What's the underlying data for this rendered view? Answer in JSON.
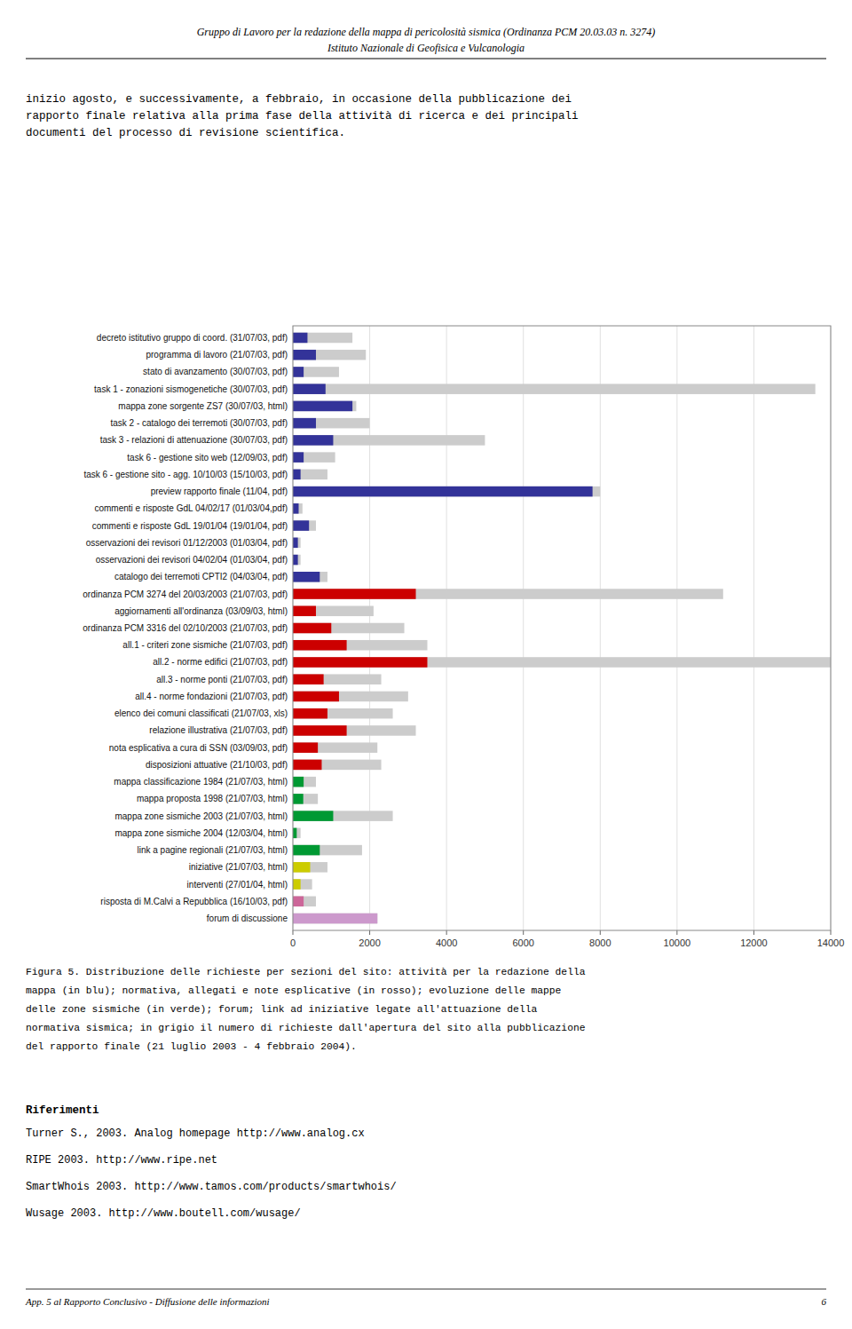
{
  "chart_data": {
    "type": "bar",
    "orientation": "horizontal",
    "stacked": false,
    "grid": true,
    "categories": [
      "decreto istitutivo gruppo di coord. (31/07/03, pdf)",
      "programma di lavoro (21/07/03, pdf)",
      "stato di avanzamento (30/07/03, pdf)",
      "task 1 - zonazioni sismogenetiche (30/07/03, pdf)",
      "mappa  zone sorgente ZS7 (30/07/03, html)",
      "task 2 - catalogo dei terremoti (30/07/03, pdf)",
      "task 3 - relazioni di attenuazione (30/07/03, pdf)",
      "task 6 - gestione sito web (12/09/03, pdf)",
      "task 6 - gestione sito - agg. 10/10/03 (15/10/03, pdf)",
      "preview rapporto finale (11/04, pdf)",
      "commenti e risposte GdL 04/02/17 (01/03/04,pdf)",
      "commenti e risposte GdL 19/01/04 (19/01/04, pdf)",
      "osservazioni dei revisori 01/12/2003 (01/03/04, pdf)",
      "osservazioni dei revisori 04/02/04 (01/03/04, pdf)",
      "catalogo dei terremoti CPTI2 (04/03/04, pdf)",
      "ordinanza PCM 3274 del 20/03/2003 (21/07/03, pdf)",
      "aggiornamenti all'ordinanza (03/09/03, html)",
      "ordinanza PCM 3316 del 02/10/2003 (21/07/03, pdf)",
      "all.1 - criteri zone sismiche (21/07/03, pdf)",
      "all.2 - norme edifici (21/07/03, pdf)",
      "all.3 - norme ponti (21/07/03, pdf)",
      "all.4  - norme fondazioni (21/07/03, pdf)",
      "elenco dei comuni classificati (21/07/03, xls)",
      "relazione illustrativa  (21/07/03, pdf)",
      "nota esplicativa a cura di SSN (03/09/03, pdf)",
      "disposizioni attuative (21/10/03, pdf)",
      "mappa classificazione 1984 (21/07/03, html)",
      "mappa proposta 1998 (21/07/03, html)",
      "mappa  zone sismiche 2003 (21/07/03, html)",
      "mappa  zone sismiche 2004 (12/03/04, html)",
      "link a pagine regionali (21/07/03, html)",
      "iniziative (21/07/03, html)",
      "interventi (27/01/04, html)",
      "risposta di M.Calvi a Repubblica (16/10/03, pdf)",
      "forum di discussione"
    ],
    "series": [
      {
        "color": "#cccccc",
        "values": [
          1550,
          1900,
          1200,
          13600,
          1650,
          2000,
          5000,
          1100,
          900,
          8000,
          250,
          600,
          200,
          200,
          900,
          11200,
          2100,
          2900,
          3500,
          14000,
          2300,
          3000,
          2600,
          3200,
          2200,
          2300,
          600,
          650,
          2600,
          200,
          1800,
          900,
          500,
          600,
          2200
        ]
      },
      {
        "colors": [
          "#333399",
          "#333399",
          "#333399",
          "#333399",
          "#333399",
          "#333399",
          "#333399",
          "#333399",
          "#333399",
          "#333399",
          "#333399",
          "#333399",
          "#333399",
          "#333399",
          "#333399",
          "#cc0000",
          "#cc0000",
          "#cc0000",
          "#cc0000",
          "#cc0000",
          "#cc0000",
          "#cc0000",
          "#cc0000",
          "#cc0000",
          "#cc0000",
          "#cc0000",
          "#009933",
          "#009933",
          "#009933",
          "#009933",
          "#009933",
          "#cccc00",
          "#cccc00",
          "#cc6699",
          "#cc99cc"
        ],
        "values": [
          380,
          600,
          280,
          850,
          1550,
          600,
          1050,
          280,
          200,
          7800,
          150,
          420,
          130,
          130,
          700,
          3200,
          600,
          1000,
          1400,
          3500,
          800,
          1200,
          900,
          1400,
          650,
          750,
          280,
          270,
          1050,
          100,
          700,
          450,
          200,
          280,
          2200
        ]
      }
    ],
    "xlim": [
      0,
      14000
    ],
    "xticks": [
      0,
      2000,
      4000,
      6000,
      8000,
      10000,
      12000,
      14000
    ],
    "annotations": [
      "Gruppo di Lavoro per la redazione della mappa di pericolosità sismica (Ordinanza PCM 20.03.03 n. 3274)",
      "Istituto Nazionale di Geofisica e Vulcanologia",
      "inizio agosto, e successivamente, a febbraio, in occasione della pubblicazione dei",
      "rapporto finale relativa alla prima fase della attività di ricerca e dei principali",
      "documenti del processo di revisione scientifica.",
      "Figura 5. Distribuzione delle richieste per sezioni del sito: attività per la redazione della",
      "mappa (in blu); normativa, allegati e note esplicative (in rosso); evoluzione delle mappe",
      "delle zone sismiche (in verde); forum; link ad iniziative legate all'attuazione della",
      "normativa sismica; in grigio il numero di richieste dall'apertura del sito alla pubblicazione",
      "del rapporto finale (21 luglio 2003 - 4 febbraio 2004).",
      "Riferimenti",
      "Turner S., 2003. Analog homepage http://www.analog.cx",
      "RIPE 2003. http://www.ripe.net",
      "SmartWhois 2003. http://www.tamos.com/products/smartwhois/",
      "Wusage 2003. http://www.boutell.com/wusage/",
      "App. 5 al Rapporto Conclusivo - Diffusione delle informazioni",
      "6"
    ]
  }
}
